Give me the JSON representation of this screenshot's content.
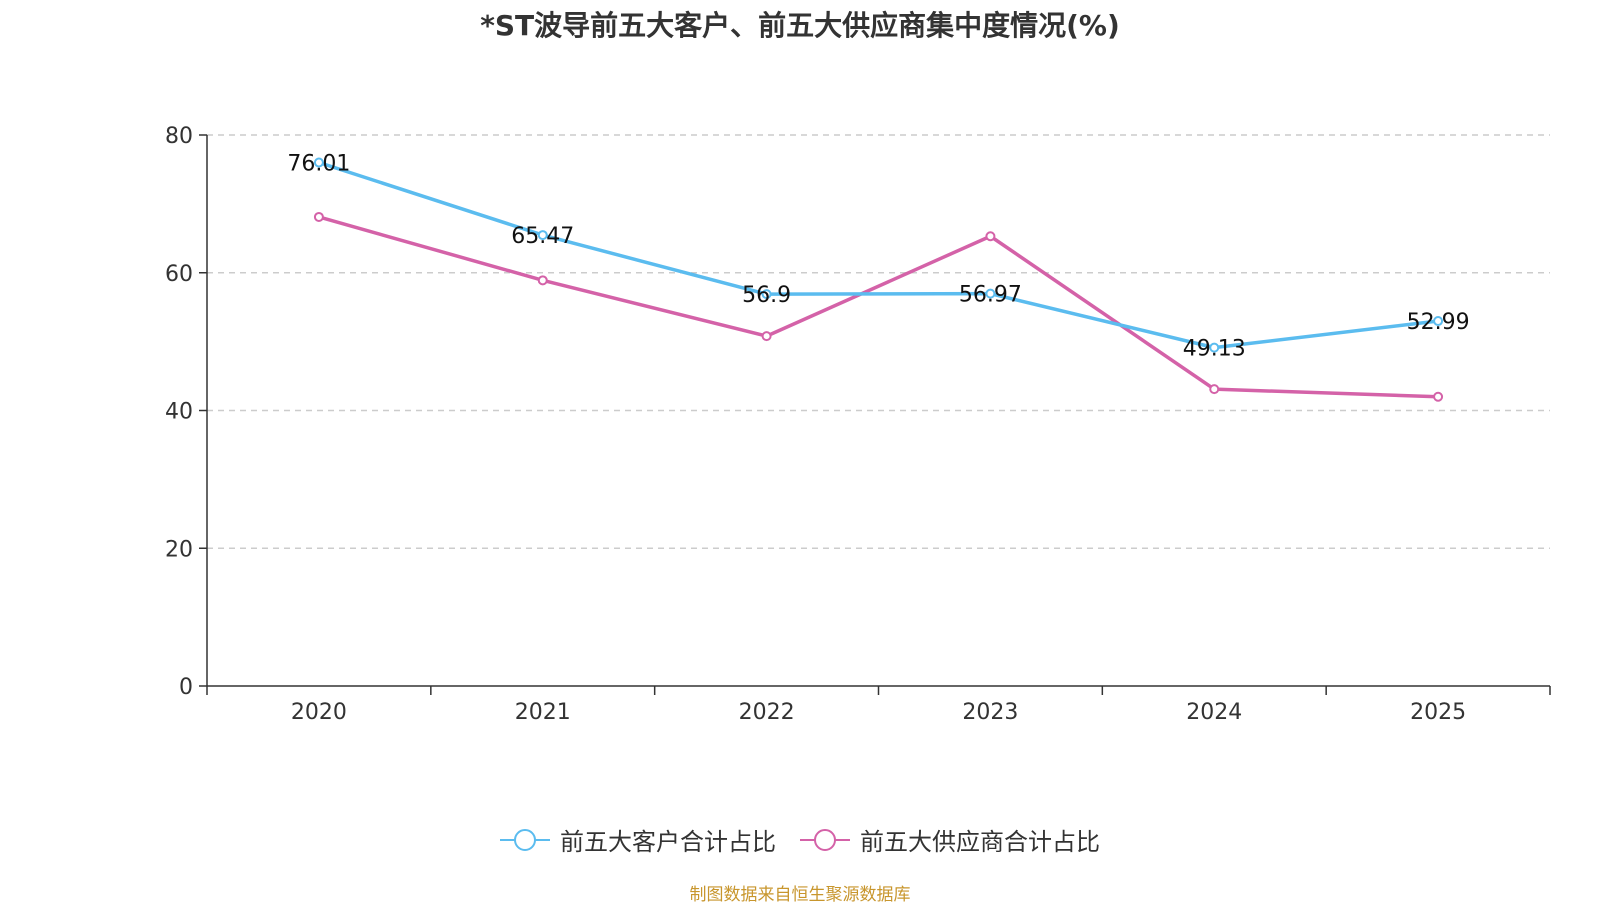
{
  "chart_data": {
    "type": "line",
    "title": "*ST波导前五大客户、前五大供应商集中度情况(%)",
    "xlabel": "",
    "ylabel": "",
    "categories": [
      "2020",
      "2021",
      "2022",
      "2023",
      "2024",
      "2025"
    ],
    "ylim": [
      0,
      80
    ],
    "yticks": [
      0,
      20,
      40,
      60,
      80
    ],
    "grid": true,
    "legend_position": "bottom",
    "series": [
      {
        "name": "前五大客户合计占比",
        "color": "#5bbcef",
        "values": [
          76.01,
          65.47,
          56.9,
          56.97,
          49.13,
          52.99
        ],
        "labels": [
          "76.01",
          "65.47",
          "56.9",
          "56.97",
          "49.13",
          "52.99"
        ]
      },
      {
        "name": "前五大供应商合计占比",
        "color": "#d462a8",
        "values": [
          68.1,
          58.9,
          50.8,
          65.3,
          43.1,
          42.0
        ],
        "labels": null
      }
    ]
  },
  "source": "制图数据来自恒生聚源数据库"
}
